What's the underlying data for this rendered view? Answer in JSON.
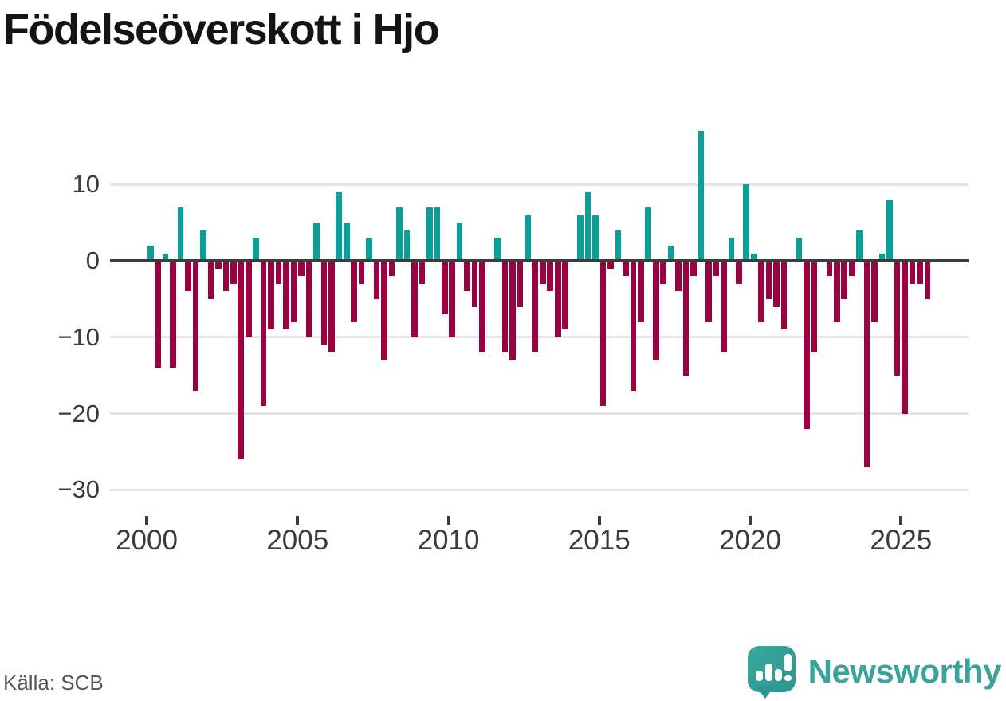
{
  "title": "Födelseöverskott i Hjo",
  "source": "Källa: SCB",
  "branding": {
    "name": "Newsworthy",
    "color": "#3aa39c",
    "icon": "speech-bubble-bar-chart-exclamation"
  },
  "colors": {
    "positive": "#0a9f99",
    "negative": "#990341",
    "grid": "#e4e4e4",
    "zero_line": "#3c3c3c",
    "axis_text": "#3b3b3b",
    "title_text": "#141414",
    "source_text": "#575757"
  },
  "chart_data": {
    "type": "bar",
    "title": "Födelseöverskott i Hjo",
    "frequency": "quarterly",
    "start_year": 2000,
    "values": [
      2,
      -14,
      1,
      -14,
      7,
      -4,
      -17,
      4,
      -5,
      -1,
      -4,
      -3,
      -26,
      -10,
      3,
      -19,
      -9,
      -3,
      -9,
      -8,
      -2,
      -10,
      5,
      -11,
      -12,
      9,
      5,
      -8,
      -3,
      3,
      -5,
      -13,
      -2,
      7,
      4,
      -10,
      -3,
      7,
      7,
      -7,
      -10,
      5,
      -4,
      -6,
      -12,
      0,
      3,
      -12,
      -13,
      -6,
      6,
      -12,
      -3,
      -4,
      -10,
      -9,
      0,
      6,
      9,
      6,
      -19,
      -1,
      4,
      -2,
      -17,
      -8,
      7,
      -13,
      -3,
      2,
      -4,
      -15,
      -2,
      17,
      -8,
      -2,
      -12,
      3,
      -3,
      10,
      1,
      -8,
      -5,
      -6,
      -9,
      0,
      3,
      -22,
      -12,
      0,
      -2,
      -8,
      -5,
      -2,
      4,
      -27,
      -8,
      1,
      8,
      -15,
      -20,
      -3,
      -3,
      -5
    ],
    "x_ticks": [
      {
        "year": 2000,
        "label": "2000"
      },
      {
        "year": 2005,
        "label": "2005"
      },
      {
        "year": 2010,
        "label": "2010"
      },
      {
        "year": 2015,
        "label": "2015"
      },
      {
        "year": 2020,
        "label": "2020"
      },
      {
        "year": 2025,
        "label": "2025"
      }
    ],
    "y_ticks": [
      {
        "value": 10,
        "label": "10"
      },
      {
        "value": 0,
        "label": "0"
      },
      {
        "value": -10,
        "label": "−10"
      },
      {
        "value": -20,
        "label": "−20"
      },
      {
        "value": -30,
        "label": "−30"
      }
    ],
    "ylim": [
      -33.2,
      18.5
    ],
    "grid": true,
    "legend": "none"
  }
}
